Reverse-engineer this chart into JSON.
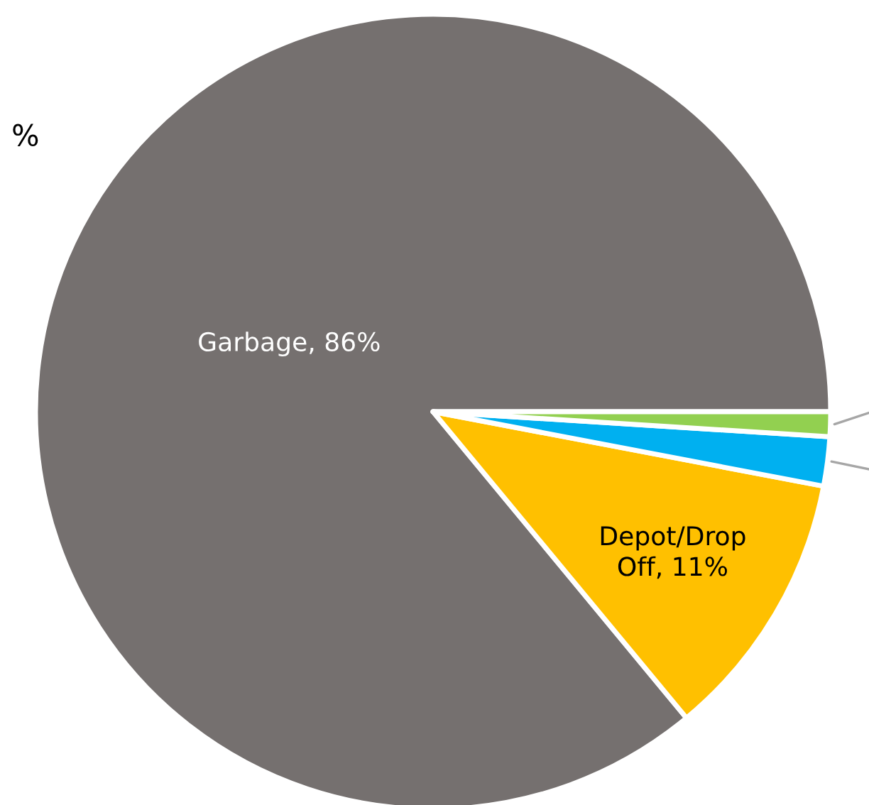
{
  "chart_data": {
    "type": "pie",
    "categories": [
      "Garbage",
      "Depot/Drop Off",
      null,
      null
    ],
    "values": [
      86,
      11,
      2,
      1
    ],
    "colors": [
      "#75706f",
      "#ffc000",
      "#00b0f0",
      "#92d050"
    ],
    "value_labels": [
      "86%",
      "11%",
      null,
      null
    ],
    "annotations": [
      "%"
    ],
    "legend": false
  }
}
